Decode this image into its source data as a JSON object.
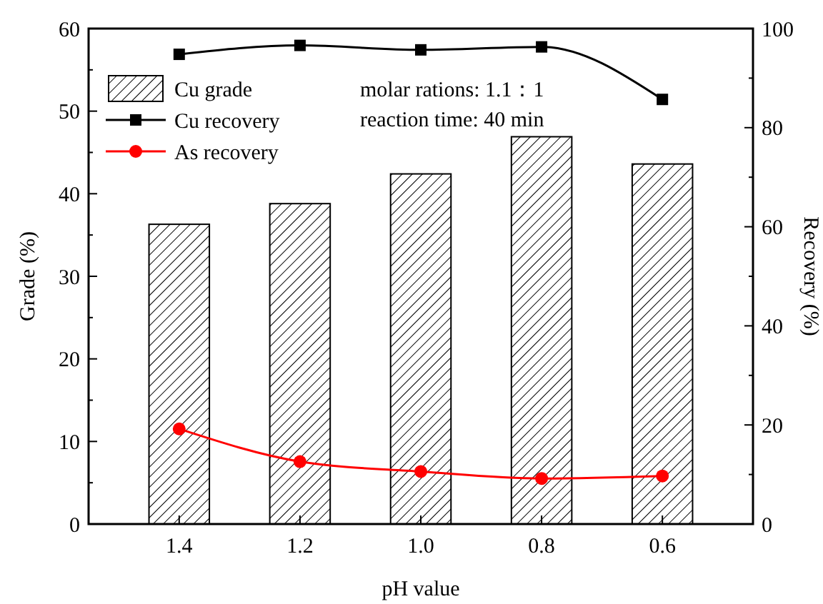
{
  "chart_data": {
    "type": "bar",
    "categories": [
      "1.4",
      "1.2",
      "1.0",
      "0.8",
      "0.6"
    ],
    "xlabel": "pH value",
    "ylabel": "Grade (%)",
    "y2label": "Recovery (%)",
    "ylim": [
      0,
      60
    ],
    "yticks": [
      0,
      10,
      20,
      30,
      40,
      50,
      60
    ],
    "y2lim": [
      0,
      100
    ],
    "y2ticks": [
      0,
      20,
      40,
      60,
      80,
      100
    ],
    "legend": "top left",
    "annotations": [
      "molar rations: 1.1：1",
      "reaction time: 40 min"
    ],
    "series": [
      {
        "name": "Cu grade",
        "color": "#000000",
        "values": [
          36.3,
          38.8,
          42.4,
          46.9,
          43.6
        ]
      },
      {
        "name": "Cu recovery",
        "type": "line",
        "axis": "y2",
        "marker": "square",
        "color": "#000000",
        "values": [
          94.8,
          96.6,
          95.7,
          96.3,
          85.7
        ]
      },
      {
        "name": "As recovery",
        "type": "line",
        "axis": "y2",
        "marker": "circle",
        "color": "#ff0000",
        "values": [
          19.2,
          12.6,
          10.6,
          9.2,
          9.7
        ]
      }
    ]
  }
}
